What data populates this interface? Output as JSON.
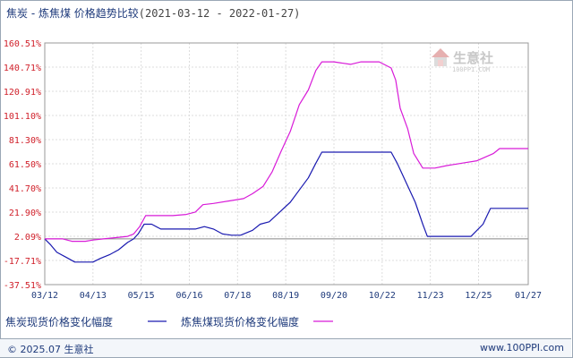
{
  "title": {
    "product": "焦炭 - 炼焦煤 价格趋势比较",
    "date_range": "(2021-03-12 - 2022-01-27)"
  },
  "watermark": {
    "text": "生意社",
    "sub": "100PPI.COM"
  },
  "footer": {
    "copyright": "© 2025.07 生意社",
    "site": "www.100PPI.com"
  },
  "colors": {
    "series_1": "#1a1ab0",
    "series_2": "#d81bd8",
    "axis": "#999999",
    "grid": "#dddddd",
    "ylabel": "#d0202a"
  },
  "chart_data": {
    "type": "line",
    "yticks": [
      "160.51%",
      "140.71%",
      "120.91%",
      "101.10%",
      "81.30%",
      "61.50%",
      "41.70%",
      "21.90%",
      "2.09%",
      "-17.71%",
      "-37.51%"
    ],
    "ylim": [
      -37.51,
      160.51
    ],
    "xticks": [
      "03/12",
      "04/13",
      "05/15",
      "06/16",
      "07/18",
      "08/19",
      "09/20",
      "10/22",
      "11/23",
      "12/25",
      "01/27"
    ],
    "grid": true,
    "legend_position": "bottom-left",
    "series": [
      {
        "name": "焦炭现货价格变化幅度",
        "color": "#1a1ab0",
        "points": [
          [
            "03/12",
            0
          ],
          [
            "03/16",
            -5
          ],
          [
            "03/20",
            -11
          ],
          [
            "03/26",
            -15
          ],
          [
            "04/01",
            -19
          ],
          [
            "04/08",
            -19
          ],
          [
            "04/13",
            -19
          ],
          [
            "04/18",
            -16
          ],
          [
            "04/24",
            -13
          ],
          [
            "04/30",
            -9
          ],
          [
            "05/06",
            -3
          ],
          [
            "05/10",
            0
          ],
          [
            "05/13",
            4
          ],
          [
            "05/17",
            12
          ],
          [
            "05/22",
            12
          ],
          [
            "05/28",
            8
          ],
          [
            "06/10",
            8
          ],
          [
            "06/20",
            8
          ],
          [
            "06/26",
            10
          ],
          [
            "07/02",
            8
          ],
          [
            "07/08",
            4
          ],
          [
            "07/14",
            3
          ],
          [
            "07/20",
            3
          ],
          [
            "07/28",
            7
          ],
          [
            "08/02",
            12
          ],
          [
            "08/08",
            14
          ],
          [
            "08/15",
            22
          ],
          [
            "08/22",
            30
          ],
          [
            "08/28",
            40
          ],
          [
            "09/03",
            50
          ],
          [
            "09/08",
            62
          ],
          [
            "09/12",
            71
          ],
          [
            "09/20",
            71
          ],
          [
            "10/01",
            71
          ],
          [
            "10/15",
            71
          ],
          [
            "10/28",
            71
          ],
          [
            "11/01",
            62
          ],
          [
            "11/07",
            46
          ],
          [
            "11/13",
            30
          ],
          [
            "11/18",
            12
          ],
          [
            "11/21",
            2
          ],
          [
            "11/30",
            2
          ],
          [
            "12/10",
            2
          ],
          [
            "12/20",
            2
          ],
          [
            "12/28",
            12
          ],
          [
            "12/31",
            20
          ],
          [
            "01/02",
            25
          ],
          [
            "01/27",
            25
          ]
        ]
      },
      {
        "name": "炼焦煤现货价格变化幅度",
        "color": "#d81bd8",
        "points": [
          [
            "03/12",
            0
          ],
          [
            "03/18",
            0
          ],
          [
            "03/24",
            0
          ],
          [
            "03/30",
            -2
          ],
          [
            "04/08",
            -2
          ],
          [
            "04/13",
            -1
          ],
          [
            "04/20",
            0
          ],
          [
            "04/28",
            1
          ],
          [
            "05/06",
            2
          ],
          [
            "05/10",
            4
          ],
          [
            "05/14",
            10
          ],
          [
            "05/18",
            19
          ],
          [
            "05/26",
            19
          ],
          [
            "06/05",
            19
          ],
          [
            "06/14",
            20
          ],
          [
            "06/20",
            22
          ],
          [
            "06/25",
            28
          ],
          [
            "07/02",
            29
          ],
          [
            "07/12",
            31
          ],
          [
            "07/22",
            33
          ],
          [
            "07/28",
            37
          ],
          [
            "08/04",
            43
          ],
          [
            "08/10",
            55
          ],
          [
            "08/16",
            72
          ],
          [
            "08/22",
            88
          ],
          [
            "08/28",
            110
          ],
          [
            "09/03",
            122
          ],
          [
            "09/08",
            138
          ],
          [
            "09/12",
            145
          ],
          [
            "09/20",
            145
          ],
          [
            "10/01",
            143
          ],
          [
            "10/08",
            145
          ],
          [
            "10/20",
            145
          ],
          [
            "10/28",
            140
          ],
          [
            "10/31",
            130
          ],
          [
            "11/03",
            107
          ],
          [
            "11/08",
            90
          ],
          [
            "11/12",
            70
          ],
          [
            "11/18",
            58
          ],
          [
            "11/26",
            58
          ],
          [
            "12/04",
            60
          ],
          [
            "12/14",
            62
          ],
          [
            "12/24",
            64
          ],
          [
            "01/04",
            70
          ],
          [
            "01/08",
            74
          ],
          [
            "01/27",
            74
          ]
        ]
      }
    ]
  }
}
